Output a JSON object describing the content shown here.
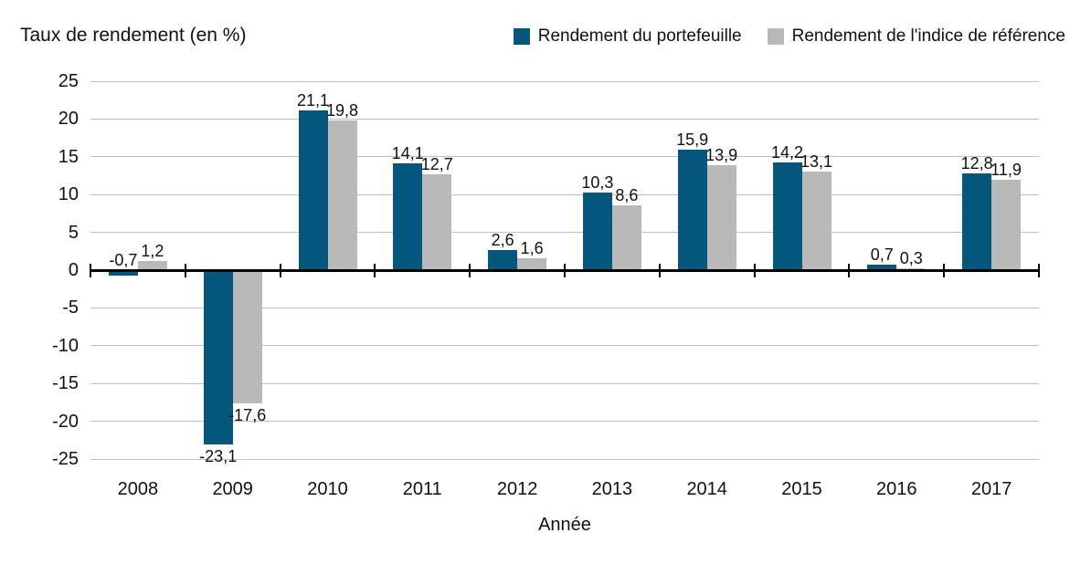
{
  "title": "Taux de rendement (en %)",
  "x_axis_title": "Année",
  "colors": {
    "portfolio": "#04567d",
    "benchmark": "#b9b9b9",
    "gridline": "#c0c0c0",
    "axis": "#000000",
    "text": "#111111",
    "background": "#ffffff"
  },
  "chart_data": {
    "type": "bar",
    "title": "Taux de rendement (en %)",
    "xlabel": "Année",
    "ylabel": "Taux de rendement (en %)",
    "categories": [
      "2008",
      "2009",
      "2010",
      "2011",
      "2012",
      "2013",
      "2014",
      "2015",
      "2016",
      "2017"
    ],
    "series": [
      {
        "name": "Rendement du portefeuille",
        "color": "#04567d",
        "values": [
          -0.7,
          -23.1,
          21.1,
          14.1,
          2.6,
          10.3,
          15.9,
          14.2,
          0.7,
          12.8
        ],
        "labels": [
          "-0,7",
          "-23,1",
          "21,1",
          "14,1",
          "2,6",
          "10,3",
          "15,9",
          "14,2",
          "0,7",
          "12,8"
        ]
      },
      {
        "name": "Rendement de l'indice de référence",
        "color": "#b9b9b9",
        "values": [
          1.2,
          -17.6,
          19.8,
          12.7,
          1.6,
          8.6,
          13.9,
          13.1,
          0.3,
          11.9
        ],
        "labels": [
          "1,2",
          "-17,6",
          "19,8",
          "12,7",
          "1,6",
          "8,6",
          "13,9",
          "13,1",
          "0,3",
          "11,9"
        ]
      }
    ],
    "ylim": [
      -25,
      25
    ],
    "yticks": [
      25,
      20,
      15,
      10,
      5,
      0,
      -5,
      -10,
      -15,
      -20,
      -25
    ],
    "grid": true,
    "legend_position": "top-right"
  }
}
